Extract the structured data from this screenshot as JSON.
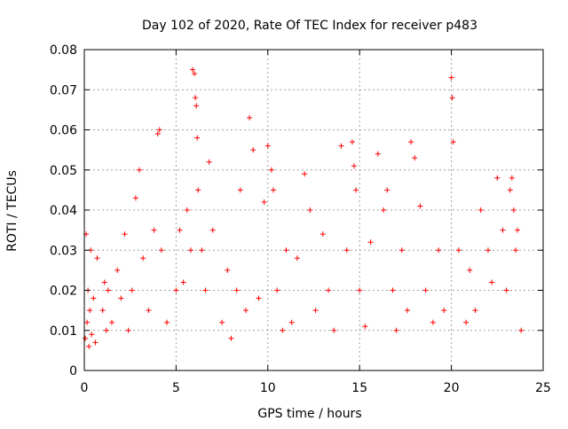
{
  "chart_data": {
    "type": "scatter",
    "title": "Day 102 of 2020, Rate Of TEC Index for receiver p483",
    "xlabel": "GPS time / hours",
    "ylabel": "ROTI / TECUs",
    "xlim": [
      0,
      25
    ],
    "ylim": [
      0,
      0.08
    ],
    "xticks": [
      0,
      5,
      10,
      15,
      20,
      25
    ],
    "xtick_labels": [
      "0",
      "5",
      "10",
      "15",
      "20",
      "25"
    ],
    "yticks": [
      0,
      0.01,
      0.02,
      0.03,
      0.04,
      0.05,
      0.06,
      0.07,
      0.08
    ],
    "ytick_labels": [
      "0",
      "0.01",
      "0.02",
      "0.03",
      "0.04",
      "0.05",
      "0.06",
      "0.07",
      "0.08"
    ],
    "grid": true,
    "marker": "+",
    "marker_color": "#ff0000",
    "series": [
      {
        "x": [
          0.05,
          0.1,
          0.15,
          0.2,
          0.25,
          0.3,
          0.35,
          0.4,
          0.5,
          0.6,
          0.7,
          1.0,
          1.1,
          1.2,
          1.3,
          1.5,
          1.8,
          2.0,
          2.2,
          2.4,
          2.6,
          2.8,
          3.0,
          3.2,
          3.5,
          3.8,
          4.0,
          4.1,
          4.2,
          4.5,
          5.0,
          5.2,
          5.4,
          5.6,
          5.8,
          5.9,
          6.0,
          6.05,
          6.1,
          6.15,
          6.2,
          6.4,
          6.6,
          6.8,
          7.0,
          7.5,
          7.8,
          8.0,
          8.3,
          8.5,
          8.8,
          9.0,
          9.2,
          9.5,
          9.8,
          10.0,
          10.2,
          10.3,
          10.5,
          10.8,
          11.0,
          11.3,
          11.6,
          12.0,
          12.3,
          12.6,
          13.0,
          13.3,
          13.6,
          14.0,
          14.3,
          14.6,
          14.7,
          14.8,
          15.0,
          15.3,
          15.6,
          16.0,
          16.3,
          16.5,
          16.8,
          17.0,
          17.3,
          17.6,
          17.8,
          18.0,
          18.3,
          18.6,
          19.0,
          19.3,
          19.6,
          20.0,
          20.05,
          20.1,
          20.4,
          20.8,
          21.0,
          21.3,
          21.6,
          22.0,
          22.2,
          22.5,
          22.8,
          23.0,
          23.2,
          23.3,
          23.4,
          23.5,
          23.6,
          23.8
        ],
        "y": [
          0.008,
          0.034,
          0.012,
          0.02,
          0.006,
          0.015,
          0.03,
          0.009,
          0.018,
          0.007,
          0.028,
          0.015,
          0.022,
          0.01,
          0.02,
          0.012,
          0.025,
          0.018,
          0.034,
          0.01,
          0.02,
          0.043,
          0.05,
          0.028,
          0.015,
          0.035,
          0.059,
          0.06,
          0.03,
          0.012,
          0.02,
          0.035,
          0.022,
          0.04,
          0.03,
          0.075,
          0.074,
          0.068,
          0.066,
          0.058,
          0.045,
          0.03,
          0.02,
          0.052,
          0.035,
          0.012,
          0.025,
          0.008,
          0.02,
          0.045,
          0.015,
          0.063,
          0.055,
          0.018,
          0.042,
          0.056,
          0.05,
          0.045,
          0.02,
          0.01,
          0.03,
          0.012,
          0.028,
          0.049,
          0.04,
          0.015,
          0.034,
          0.02,
          0.01,
          0.056,
          0.03,
          0.057,
          0.051,
          0.045,
          0.02,
          0.011,
          0.032,
          0.054,
          0.04,
          0.045,
          0.02,
          0.01,
          0.03,
          0.015,
          0.057,
          0.053,
          0.041,
          0.02,
          0.012,
          0.03,
          0.015,
          0.073,
          0.068,
          0.057,
          0.03,
          0.012,
          0.025,
          0.015,
          0.04,
          0.03,
          0.022,
          0.048,
          0.035,
          0.02,
          0.045,
          0.048,
          0.04,
          0.03,
          0.035,
          0.01
        ]
      }
    ]
  }
}
